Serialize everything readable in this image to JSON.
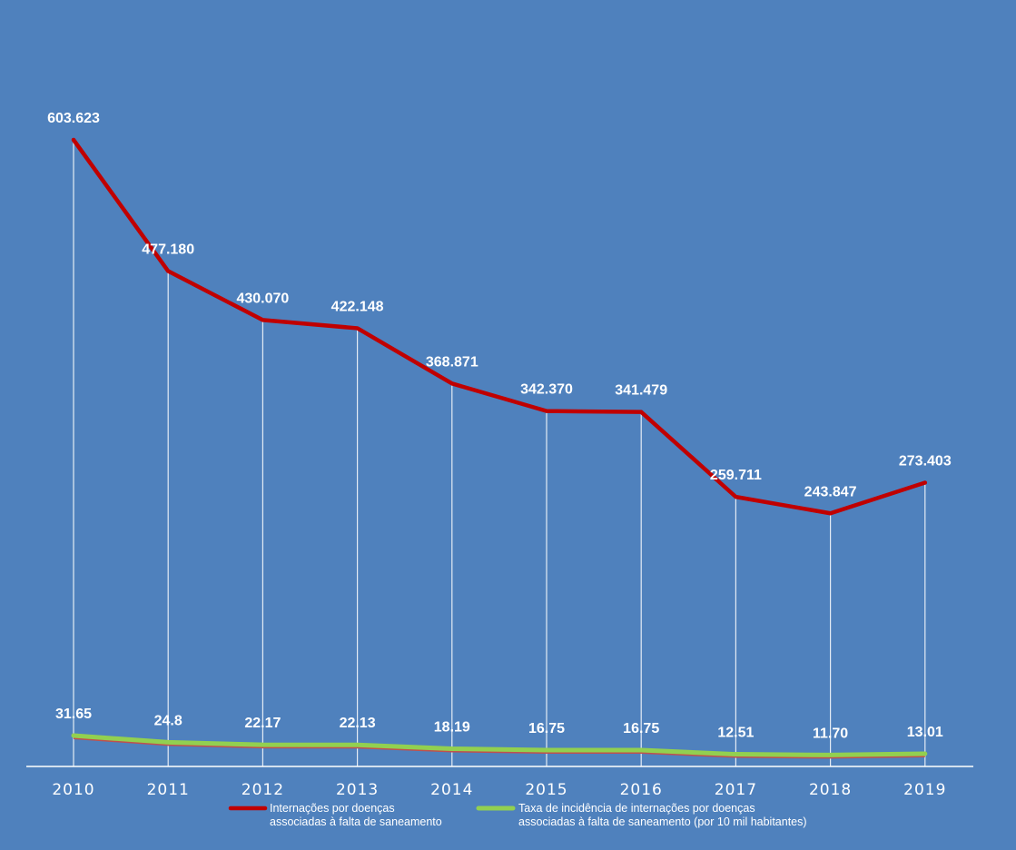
{
  "colors": {
    "background": "#4f81bd",
    "series_1": "#c00000",
    "series_2": "#92d050",
    "drop_lines": "#ffffff",
    "axis": "#ffffff",
    "text": "#ffffff"
  },
  "chart_data": {
    "type": "line",
    "title": "",
    "xlabel": "",
    "ylabel": "",
    "categories": [
      "2010",
      "2011",
      "2012",
      "2013",
      "2014",
      "2015",
      "2016",
      "2017",
      "2018",
      "2019"
    ],
    "ylim": [
      0,
      700000
    ],
    "grid": false,
    "drop_lines": true,
    "legend_position": "bottom",
    "series": [
      {
        "name": "Internações por doenças associadas à falta de saneamento",
        "legend_lines": [
          "Internações por doenças",
          "associadas à falta de saneamento"
        ],
        "values": [
          603623,
          477180,
          430070,
          422148,
          368871,
          342370,
          341479,
          259711,
          243847,
          273403
        ],
        "labels": [
          "603.623",
          "477.180",
          "430.070",
          "422.148",
          "368.871",
          "342.370",
          "341.479",
          "259.711",
          "243.847",
          "273.403"
        ]
      },
      {
        "name": "Taxa de incidência de internações por doenças associadas à falta de saneamento (por 10 mil habitantes)",
        "legend_lines": [
          "Taxa de incidência de internações por doenças",
          "associadas à falta de saneamento (por 10 mil habitantes)"
        ],
        "values": [
          31.65,
          24.8,
          22.17,
          22.13,
          18.19,
          16.75,
          16.75,
          12.51,
          11.7,
          13.01
        ],
        "labels": [
          "31.65",
          "24.8",
          "22.17",
          "22.13",
          "18.19",
          "16.75",
          "16.75",
          "12.51",
          "11.70",
          "13.01"
        ]
      }
    ]
  }
}
